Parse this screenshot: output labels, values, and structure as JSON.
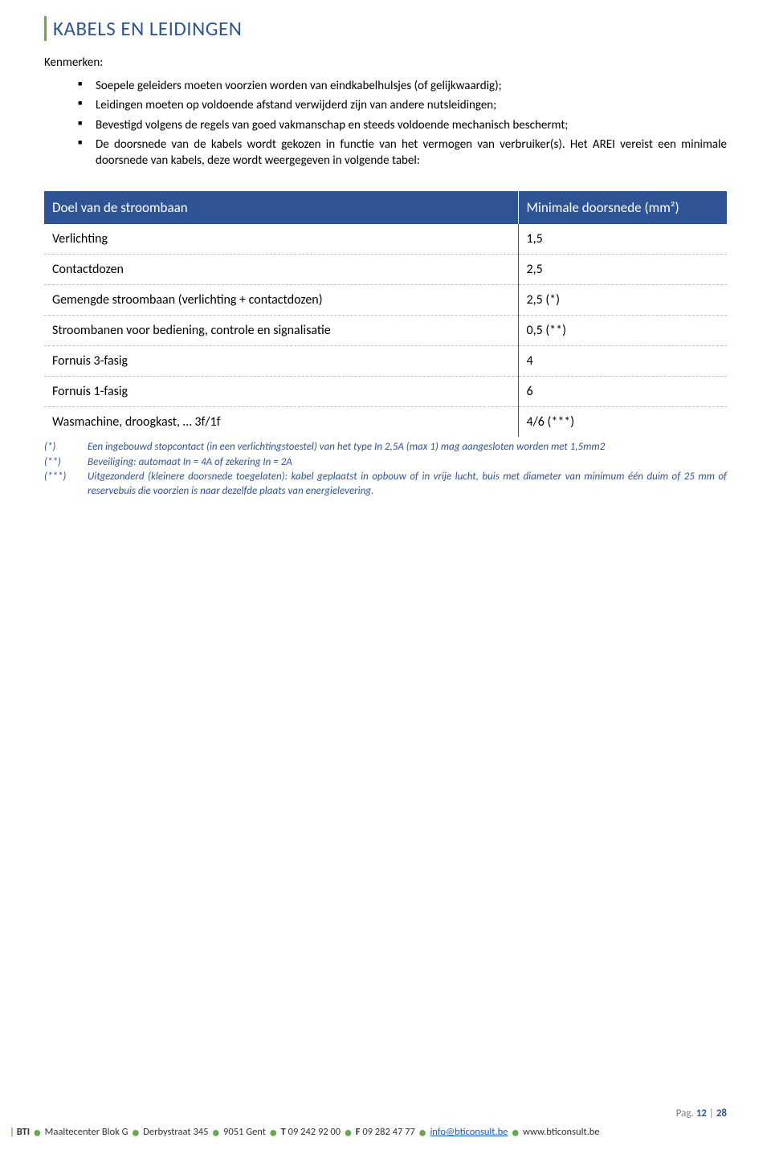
{
  "section_title": "KABELS EN LEIDINGEN",
  "sub_heading": "Kenmerken:",
  "bullets": [
    "Soepele geleiders moeten voorzien worden van eindkabelhulsjes (of gelijkwaardig);",
    "Leidingen moeten op voldoende afstand verwijderd zijn van andere nutsleidingen;",
    "Bevestigd volgens de regels van goed vakmanschap en steeds voldoende mechanisch beschermt;",
    "De doorsnede van de kabels wordt gekozen in functie van het vermogen van verbruiker(s). Het AREI vereist een minimale doorsnede van kabels, deze wordt weergegeven in volgende tabel:"
  ],
  "table": {
    "header": [
      "Doel van de stroombaan",
      "Minimale doorsnede (mm²)"
    ],
    "rows": [
      [
        "Verlichting",
        "1,5"
      ],
      [
        "Contactdozen",
        "2,5"
      ],
      [
        "Gemengde stroombaan (verlichting + contactdozen)",
        "2,5 (*)"
      ],
      [
        "Stroombanen voor bediening, controle en signalisatie",
        "0,5 (**)"
      ],
      [
        "Fornuis 3-fasig",
        "4"
      ],
      [
        "Fornuis 1-fasig",
        "6"
      ],
      [
        "Wasmachine, droogkast, … 3f/1f",
        "4/6 (***)"
      ]
    ]
  },
  "footnotes": [
    {
      "key": "(*)",
      "text": "Een ingebouwd stopcontact (in een verlichtingstoestel) van het type In 2,5A (max 1) mag aangesloten worden met 1,5mm2"
    },
    {
      "key": "(**)",
      "text": "Beveiliging: automaat In = 4A of zekering In = 2A"
    },
    {
      "key": "(***)",
      "text": "Uitgezonderd (kleinere doorsnede toegelaten): kabel geplaatst in opbouw of in vrije lucht, buis met diameter van minimum één duim of 25 mm of reservebuis die voorzien is naar dezelfde plaats van energielevering."
    }
  ],
  "page_label": "Pag.",
  "page_current": "12",
  "page_sep": "|",
  "page_total": "28",
  "footer": {
    "bar": "|",
    "company": "BTI",
    "addr1": "Maaltecenter Blok G",
    "addr2": "Derbystraat 345",
    "addr3": "9051 Gent",
    "t_label": "T",
    "t_val": "09 242 92 00",
    "f_label": "F",
    "f_val": "09 282 47 77",
    "email": "info@bticonsult.be",
    "web": "www.bticonsult.be"
  }
}
